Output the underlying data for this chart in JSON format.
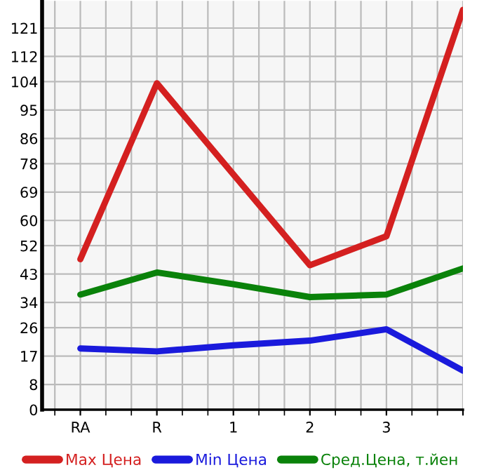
{
  "chart_data": {
    "type": "line",
    "categories": [
      "RA",
      "R",
      "1",
      "2",
      "3",
      null
    ],
    "series": [
      {
        "name": "Max Цена",
        "color": "#d42020",
        "values": [
          47.7,
          103.5,
          74.6,
          45.8,
          55.0,
          126.8
        ]
      },
      {
        "name": "Min Цена",
        "color": "#1a1adc",
        "values": [
          19.4,
          18.5,
          20.4,
          21.9,
          25.5,
          12.4
        ]
      },
      {
        "name": "Сред.Цена, т.йен",
        "color": "#0a820a",
        "values": [
          36.5,
          43.5,
          39.8,
          35.7,
          36.5,
          44.8
        ]
      }
    ],
    "ylim": [
      0,
      129.6
    ],
    "yticks": [
      0,
      8,
      17,
      26,
      34,
      43,
      52,
      60,
      69,
      78,
      86,
      95,
      104,
      112,
      121
    ],
    "grid": true,
    "legend": "bottom",
    "marker": "none",
    "line_style": "solid"
  }
}
